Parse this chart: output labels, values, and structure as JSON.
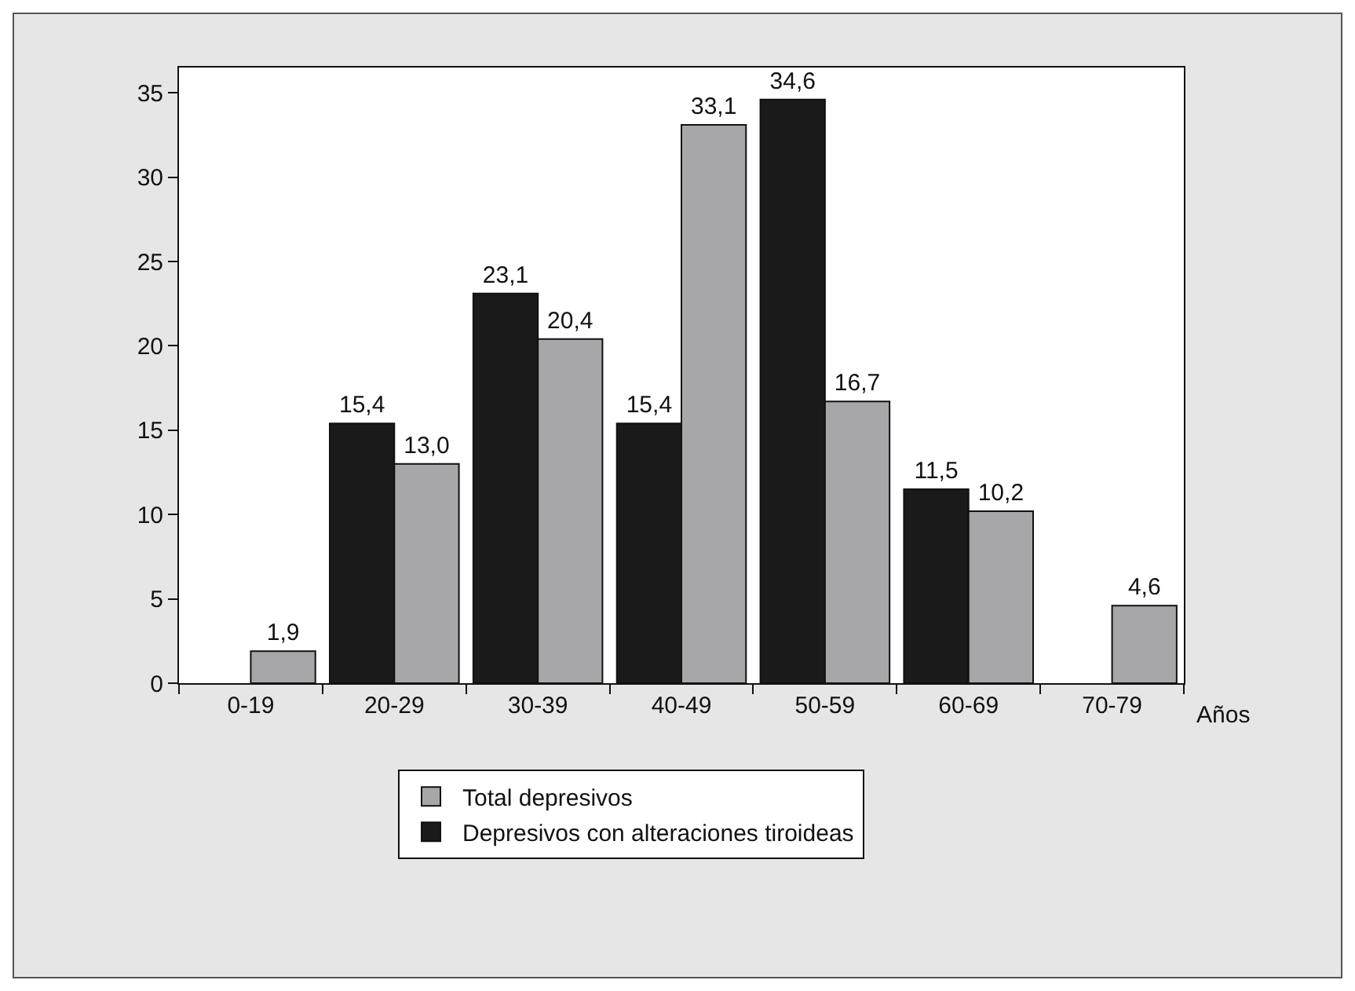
{
  "chart_data": {
    "type": "bar",
    "xlabel": "Años",
    "categories": [
      "0-19",
      "20-29",
      "30-39",
      "40-49",
      "50-59",
      "60-69",
      "70-79"
    ],
    "series": [
      {
        "name": "Depresivos con alteraciones tiroideas",
        "color": "#1a1a1a",
        "values": [
          null,
          15.4,
          23.1,
          15.4,
          34.6,
          11.5,
          null
        ],
        "value_labels": [
          null,
          "15,4",
          "23,1",
          "15,4",
          "34,6",
          "11,5",
          null
        ]
      },
      {
        "name": "Total depresivos",
        "color": "#a7a7a9",
        "values": [
          1.9,
          13.0,
          20.4,
          33.1,
          16.7,
          10.2,
          4.6
        ],
        "value_labels": [
          "1,9",
          "13,0",
          "20,4",
          "33,1",
          "16,7",
          "10,2",
          "4,6"
        ]
      }
    ],
    "ylim": [
      0,
      36.5
    ],
    "yticks": [
      0,
      5,
      10,
      15,
      20,
      25,
      30,
      35
    ],
    "grid": false,
    "legend": "bottom"
  }
}
